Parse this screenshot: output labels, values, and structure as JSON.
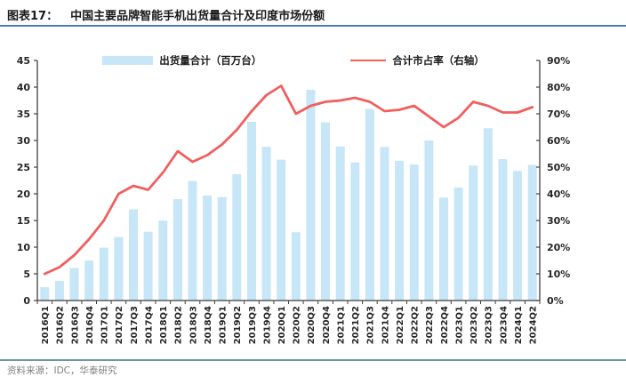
{
  "page": {
    "title_label": "图表17：",
    "title_text": "中国主要品牌智能手机出货量合计及印度市场份额",
    "source_text": "资料来源：IDC，华泰研究"
  },
  "legend": {
    "bars_label": "出货量合计（百万台）",
    "line_label": "合计市占率（右轴）"
  },
  "colors": {
    "bar": "#C7E6F7",
    "line": "#F15F5F",
    "axis": "#3F3F3F",
    "title_rule": "#4E7CB0",
    "footer_rule": "#6F96A4",
    "footer_text": "#7F7F7F"
  },
  "chart_data": {
    "type": "bar",
    "subtype": "bar+line dual axis",
    "title": "中国主要品牌智能手机出货量合计及印度市场份额",
    "categories": [
      "2016Q1",
      "2016Q2",
      "2016Q3",
      "2016Q4",
      "2017Q1",
      "2017Q2",
      "2017Q3",
      "2017Q4",
      "2018Q1",
      "2018Q2",
      "2018Q3",
      "2018Q4",
      "2019Q1",
      "2019Q2",
      "2019Q3",
      "2019Q4",
      "2020Q1",
      "2020Q2",
      "2020Q3",
      "2020Q4",
      "2021Q1",
      "2021Q2",
      "2021Q3",
      "2021Q4",
      "2022Q1",
      "2022Q2",
      "2022Q3",
      "2022Q4",
      "2023Q1",
      "2023Q2",
      "2023Q3",
      "2023Q4",
      "2024Q1",
      "2024Q2"
    ],
    "series": [
      {
        "name": "出货量合计（百万台）",
        "type": "bar",
        "axis": "left",
        "values": [
          2.5,
          3.7,
          6.1,
          7.5,
          9.9,
          11.9,
          17.1,
          12.9,
          15.0,
          19.0,
          22.4,
          19.7,
          19.4,
          23.7,
          33.5,
          28.8,
          26.4,
          12.8,
          39.5,
          33.4,
          28.9,
          25.9,
          35.9,
          28.8,
          26.2,
          25.5,
          30.0,
          19.3,
          21.2,
          25.3,
          32.3,
          26.5,
          24.3,
          25.4
        ]
      },
      {
        "name": "合计市占率（右轴）",
        "type": "line",
        "axis": "right",
        "values": [
          10,
          12.5,
          17,
          23,
          30,
          40,
          43,
          41.5,
          48,
          56,
          52,
          54.5,
          58.5,
          64,
          71,
          77,
          80.5,
          70,
          73,
          74.5,
          75,
          76,
          74.5,
          71,
          71.5,
          73,
          69,
          65,
          68.5,
          74.5,
          73,
          70.5,
          70.5,
          72.5
        ]
      }
    ],
    "left_axis": {
      "min": 0,
      "max": 45,
      "step": 5,
      "ticks": [
        0,
        5,
        10,
        15,
        20,
        25,
        30,
        35,
        40,
        45
      ]
    },
    "right_axis": {
      "min": 0,
      "max": 90,
      "step": 10,
      "ticks": [
        "0%",
        "10%",
        "20%",
        "30%",
        "40%",
        "50%",
        "60%",
        "70%",
        "80%",
        "90%"
      ]
    },
    "grid": false,
    "legend_position": "top-center",
    "x_label_rotation": -90
  }
}
